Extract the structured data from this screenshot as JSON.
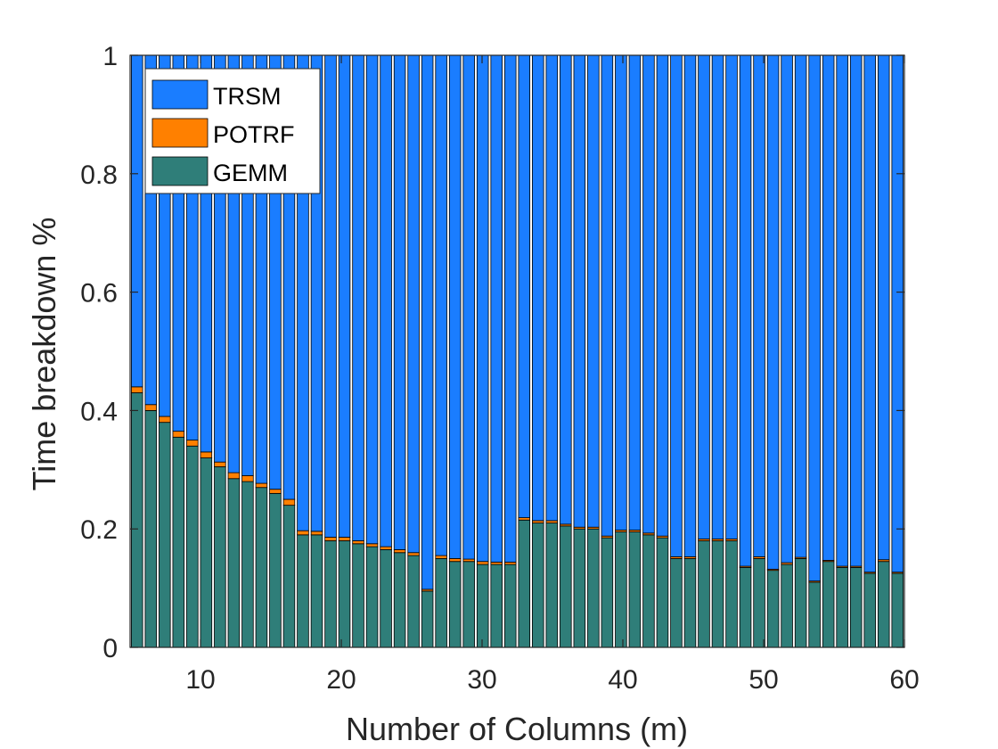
{
  "chart_data": {
    "type": "bar",
    "stacked": true,
    "normalized": true,
    "title": "",
    "xlabel": "Number of Columns (m)",
    "ylabel": "Time breakdown %",
    "xlim": [
      5,
      60
    ],
    "ylim": [
      0,
      1
    ],
    "xticks": [
      10,
      20,
      30,
      40,
      50,
      60
    ],
    "yticks": [
      0,
      0.2,
      0.4,
      0.6,
      0.8,
      1
    ],
    "ytick_labels": [
      "0",
      "0.2",
      "0.4",
      "0.6",
      "0.8",
      "1"
    ],
    "grid": false,
    "legend_position": "top-left",
    "x": [
      5,
      6,
      7,
      8,
      9,
      10,
      11,
      12,
      13,
      14,
      15,
      16,
      17,
      18,
      19,
      20,
      21,
      22,
      23,
      24,
      25,
      26,
      27,
      28,
      29,
      30,
      31,
      32,
      33,
      34,
      35,
      36,
      37,
      38,
      39,
      40,
      41,
      42,
      43,
      44,
      45,
      46,
      47,
      48,
      49,
      50,
      51,
      52,
      53,
      54,
      55,
      56,
      57,
      58,
      59,
      60
    ],
    "series": [
      {
        "name": "GEMM",
        "color": "#2f7e79",
        "values": [
          0.43,
          0.4,
          0.38,
          0.355,
          0.34,
          0.32,
          0.305,
          0.285,
          0.28,
          0.27,
          0.26,
          0.24,
          0.19,
          0.19,
          0.18,
          0.18,
          0.175,
          0.17,
          0.165,
          0.16,
          0.155,
          0.095,
          0.15,
          0.145,
          0.145,
          0.14,
          0.14,
          0.14,
          0.215,
          0.21,
          0.21,
          0.205,
          0.2,
          0.2,
          0.185,
          0.195,
          0.195,
          0.19,
          0.185,
          0.15,
          0.15,
          0.18,
          0.18,
          0.18,
          0.135,
          0.15,
          0.13,
          0.14,
          0.15,
          0.11,
          0.145,
          0.135,
          0.135,
          0.125,
          0.145,
          0.125
        ]
      },
      {
        "name": "POTRF",
        "color": "#ff8000",
        "values": [
          0.01,
          0.01,
          0.01,
          0.01,
          0.01,
          0.01,
          0.008,
          0.01,
          0.01,
          0.007,
          0.007,
          0.01,
          0.007,
          0.006,
          0.006,
          0.006,
          0.005,
          0.005,
          0.005,
          0.005,
          0.005,
          0.003,
          0.005,
          0.005,
          0.004,
          0.005,
          0.004,
          0.004,
          0.004,
          0.004,
          0.004,
          0.003,
          0.003,
          0.003,
          0.003,
          0.003,
          0.003,
          0.003,
          0.003,
          0.003,
          0.003,
          0.003,
          0.003,
          0.003,
          0.002,
          0.003,
          0.002,
          0.003,
          0.002,
          0.002,
          0.002,
          0.002,
          0.002,
          0.002,
          0.003,
          0.002
        ]
      },
      {
        "name": "TRSM",
        "color": "#1a7dff",
        "values": [
          0.56,
          0.59,
          0.61,
          0.635,
          0.65,
          0.67,
          0.687,
          0.705,
          0.71,
          0.723,
          0.733,
          0.75,
          0.803,
          0.804,
          0.814,
          0.814,
          0.82,
          0.825,
          0.83,
          0.835,
          0.84,
          0.902,
          0.845,
          0.85,
          0.851,
          0.855,
          0.856,
          0.856,
          0.781,
          0.786,
          0.786,
          0.792,
          0.797,
          0.797,
          0.812,
          0.802,
          0.802,
          0.807,
          0.812,
          0.847,
          0.847,
          0.817,
          0.817,
          0.817,
          0.863,
          0.847,
          0.868,
          0.857,
          0.848,
          0.888,
          0.853,
          0.863,
          0.863,
          0.873,
          0.852,
          0.873
        ]
      }
    ],
    "legend": [
      {
        "name": "TRSM",
        "color": "#1a7dff"
      },
      {
        "name": "POTRF",
        "color": "#ff8000"
      },
      {
        "name": "GEMM",
        "color": "#2f7e79"
      }
    ]
  }
}
